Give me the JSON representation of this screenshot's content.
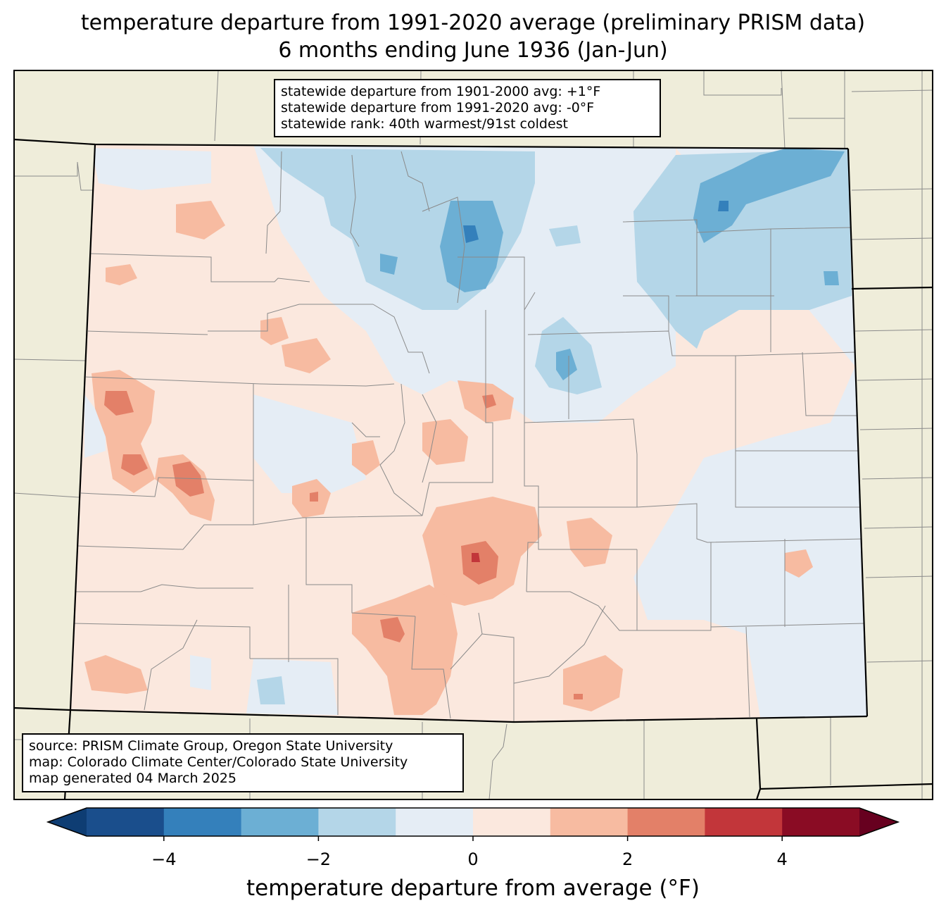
{
  "title": {
    "line1": "temperature departure from 1991-2020 average (preliminary PRISM data)",
    "line2": "6 months ending June 1936 (Jan-Jun)"
  },
  "stats_box": {
    "line1": "statewide departure from 1901-2000 avg: +1°F",
    "line2": "statewide departure from 1991-2020 avg: -0°F",
    "line3": "statewide rank: 40th warmest/91st coldest"
  },
  "source_box": {
    "line1": "source: PRISM Climate Group, Oregon State University",
    "line2": "map: Colorado Climate Center/Colorado State University",
    "line3": "map generated 04 March 2025"
  },
  "colorbar": {
    "label": "temperature departure from average (°F)",
    "range": [
      -5,
      5
    ],
    "ticks": [
      {
        "value": -4,
        "label": "−4"
      },
      {
        "value": -2,
        "label": "−2"
      },
      {
        "value": 0,
        "label": "0"
      },
      {
        "value": 2,
        "label": "2"
      },
      {
        "value": 4,
        "label": "4"
      }
    ],
    "colors": [
      "#0e3d73",
      "#1a4e8c",
      "#3480bb",
      "#6cafd4",
      "#b4d6e8",
      "#e5edf5",
      "#fbe8de",
      "#f7bba1",
      "#e38068",
      "#c2363a",
      "#8a0c24",
      "#67001f"
    ]
  },
  "map_colors": {
    "background": "#efedda",
    "state_border": "#000000",
    "county_border": "#888888"
  }
}
